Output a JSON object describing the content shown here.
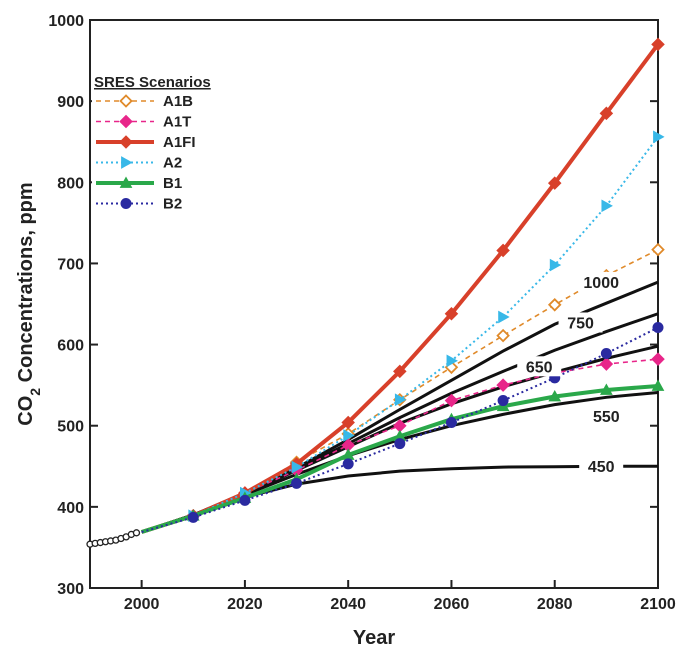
{
  "chart_data": {
    "type": "line",
    "xlabel": "Year",
    "ylabel": "CO2 Concentrations, ppm",
    "ylabel_prefix": "CO",
    "ylabel_sub": "2",
    "ylabel_suffix": " Concentrations, ppm",
    "xlim": [
      1990,
      2100
    ],
    "ylim": [
      300,
      1000
    ],
    "xticks": [
      2000,
      2020,
      2040,
      2060,
      2080,
      2100
    ],
    "yticks": [
      300,
      400,
      500,
      600,
      700,
      800,
      900,
      1000
    ],
    "grid": false,
    "legend": {
      "title": "SRES Scenarios",
      "placement": "top-left"
    },
    "historical": {
      "color": "#222222",
      "x": [
        1990,
        1991,
        1992,
        1993,
        1994,
        1995,
        1996,
        1997,
        1998,
        1999
      ],
      "y": [
        354,
        355,
        356,
        357,
        358,
        359,
        361,
        363,
        366,
        368
      ]
    },
    "series": [
      {
        "name": "A1B",
        "color": "#e08a2a",
        "style": "dashed",
        "marker": "diamond-open",
        "x": [
          2000,
          2010,
          2020,
          2030,
          2040,
          2050,
          2060,
          2070,
          2080,
          2090,
          2100
        ],
        "y": [
          369,
          389,
          417,
          455,
          490,
          532,
          572,
          611,
          649,
          685,
          717
        ]
      },
      {
        "name": "A1T",
        "color": "#e8268a",
        "style": "dashed",
        "marker": "diamond",
        "x": [
          2000,
          2010,
          2020,
          2030,
          2040,
          2050,
          2060,
          2070,
          2080,
          2090,
          2100
        ],
        "y": [
          369,
          389,
          417,
          445,
          476,
          500,
          531,
          550,
          565,
          576,
          582
        ]
      },
      {
        "name": "A1FI",
        "color": "#d8402a",
        "style": "solid-thick",
        "marker": "diamond",
        "x": [
          2000,
          2010,
          2020,
          2030,
          2040,
          2050,
          2060,
          2070,
          2080,
          2090,
          2100
        ],
        "y": [
          369,
          389,
          417,
          453,
          504,
          567,
          638,
          716,
          799,
          885,
          970
        ]
      },
      {
        "name": "A2",
        "color": "#38b8e8",
        "style": "dotted",
        "marker": "triangle-right",
        "x": [
          2000,
          2010,
          2020,
          2030,
          2040,
          2050,
          2060,
          2070,
          2080,
          2090,
          2100
        ],
        "y": [
          369,
          389,
          417,
          449,
          488,
          532,
          580,
          634,
          698,
          771,
          856
        ]
      },
      {
        "name": "B1",
        "color": "#2aa84a",
        "style": "solid-thick",
        "marker": "triangle",
        "x": [
          2000,
          2010,
          2020,
          2030,
          2040,
          2050,
          2060,
          2070,
          2080,
          2090,
          2100
        ],
        "y": [
          369,
          389,
          411,
          434,
          464,
          487,
          508,
          524,
          536,
          544,
          549
        ]
      },
      {
        "name": "B2",
        "color": "#2a2aa0",
        "style": "dotted",
        "marker": "circle",
        "x": [
          2000,
          2010,
          2020,
          2030,
          2040,
          2050,
          2060,
          2070,
          2080,
          2090,
          2100
        ],
        "y": [
          369,
          387,
          408,
          429,
          453,
          478,
          504,
          531,
          559,
          589,
          621
        ]
      }
    ],
    "stabilization": [
      {
        "name": "450",
        "x": [
          2000,
          2010,
          2020,
          2030,
          2040,
          2050,
          2060,
          2070,
          2080,
          2090,
          2100
        ],
        "y": [
          369,
          390,
          412,
          428,
          438,
          444,
          447,
          449,
          449.5,
          450,
          450
        ]
      },
      {
        "name": "550",
        "x": [
          2000,
          2010,
          2020,
          2030,
          2040,
          2050,
          2060,
          2070,
          2080,
          2090,
          2100
        ],
        "y": [
          369,
          390,
          415,
          440,
          463,
          483,
          500,
          514,
          526,
          535,
          541
        ]
      },
      {
        "name": "650",
        "x": [
          2000,
          2010,
          2020,
          2030,
          2040,
          2050,
          2060,
          2070,
          2080,
          2090,
          2100
        ],
        "y": [
          369,
          390,
          416,
          445,
          474,
          503,
          527,
          548,
          566,
          583,
          598
        ]
      },
      {
        "name": "750",
        "x": [
          2000,
          2010,
          2020,
          2030,
          2040,
          2050,
          2060,
          2070,
          2080,
          2090,
          2100
        ],
        "y": [
          369,
          390,
          416,
          446,
          478,
          510,
          540,
          567,
          593,
          616,
          638
        ]
      },
      {
        "name": "1000",
        "x": [
          2000,
          2010,
          2020,
          2030,
          2040,
          2050,
          2060,
          2070,
          2080,
          2090,
          2100
        ],
        "y": [
          369,
          390,
          417,
          448,
          483,
          520,
          556,
          592,
          625,
          651,
          677
        ]
      }
    ],
    "stabilization_labels": [
      "1000",
      "750",
      "650",
      "550",
      "450"
    ]
  }
}
